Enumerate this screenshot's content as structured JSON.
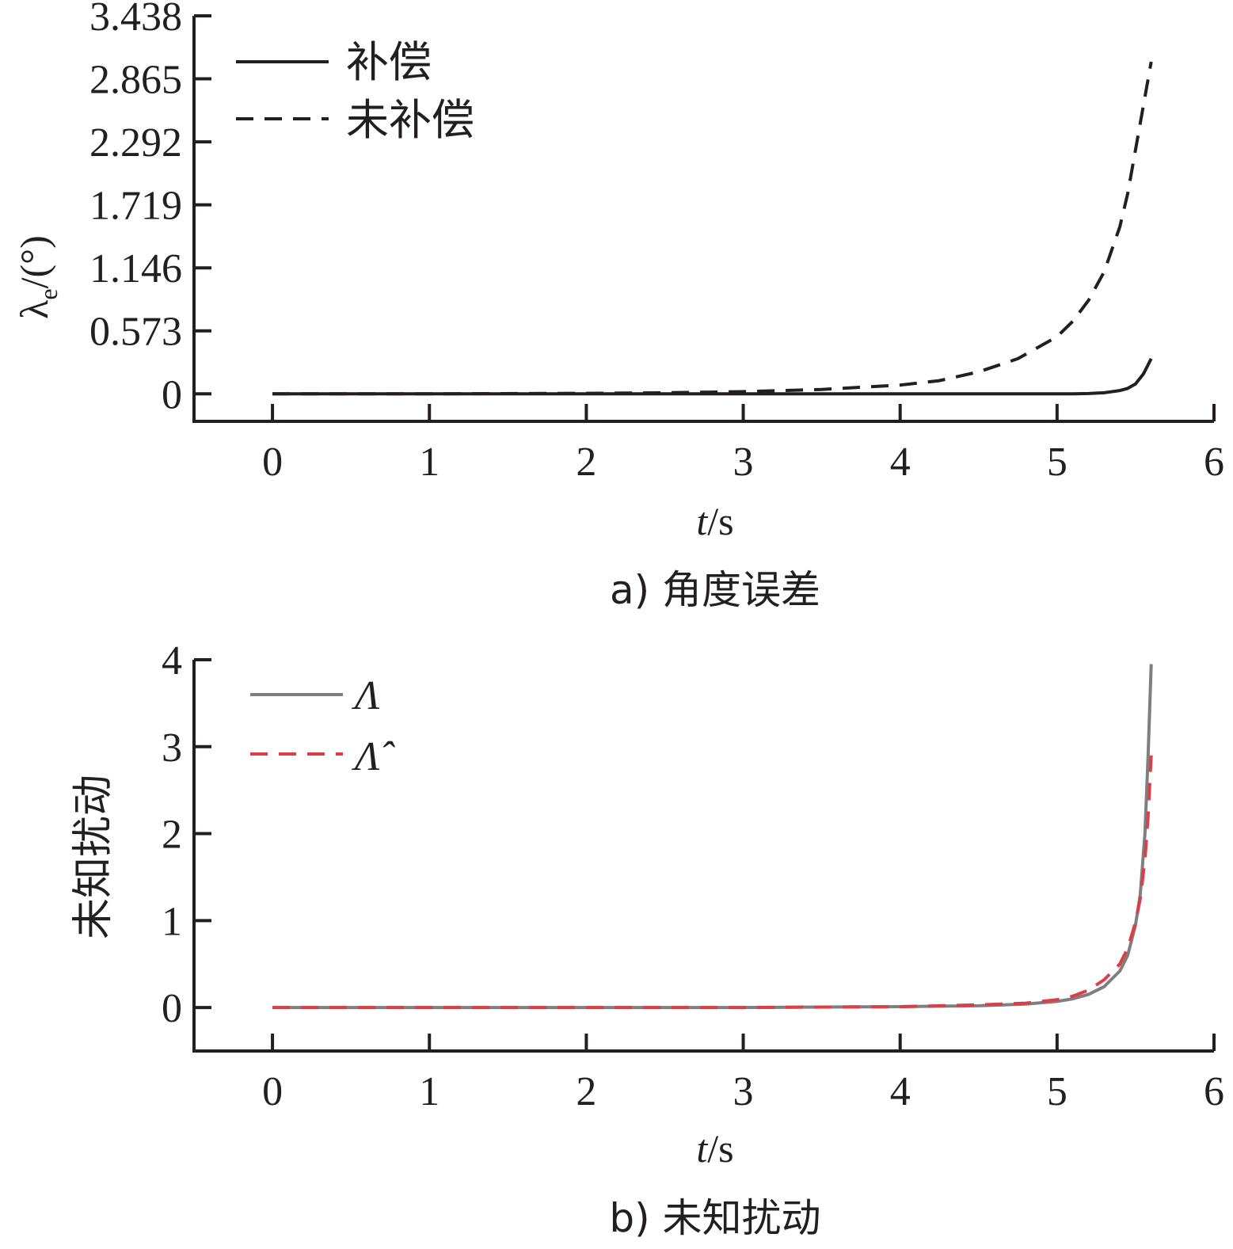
{
  "chart_data": [
    {
      "type": "line",
      "caption": "a) 角度误差",
      "xlabel_var": "t",
      "xlabel_unit": "/s",
      "ylabel_main": "λ",
      "ylabel_sub": "e",
      "ylabel_unit": "/(°)",
      "xlim": [
        -0.5,
        6
      ],
      "ylim": [
        -0.25,
        3.438
      ],
      "xticks": [
        "0",
        "1",
        "2",
        "3",
        "4",
        "5",
        "6"
      ],
      "xtick_values": [
        0,
        1,
        2,
        3,
        4,
        5,
        6
      ],
      "yticks": [
        "0",
        "0.573",
        "1.146",
        "1.719",
        "2.292",
        "2.865",
        "3.438"
      ],
      "ytick_values": [
        0,
        0.573,
        1.146,
        1.719,
        2.292,
        2.865,
        3.438
      ],
      "legend_position": "top-left",
      "series": [
        {
          "name": "补偿",
          "style": "solid",
          "color": "#231f20",
          "x": [
            0,
            1,
            2,
            3,
            4,
            5,
            5.1,
            5.2,
            5.3,
            5.4,
            5.45,
            5.5,
            5.55,
            5.6
          ],
          "y": [
            0,
            0,
            0,
            0,
            0,
            0,
            0,
            0.003,
            0.01,
            0.03,
            0.05,
            0.09,
            0.18,
            0.32
          ]
        },
        {
          "name": "未补偿",
          "style": "dashed",
          "color": "#231f20",
          "x": [
            0,
            1,
            2,
            2.5,
            3,
            3.5,
            4,
            4.25,
            4.5,
            4.75,
            5,
            5.1,
            5.2,
            5.3,
            5.4,
            5.45,
            5.5,
            5.55,
            5.6
          ],
          "y": [
            0,
            0,
            0.005,
            0.01,
            0.02,
            0.04,
            0.08,
            0.12,
            0.2,
            0.32,
            0.52,
            0.66,
            0.85,
            1.11,
            1.52,
            1.82,
            2.22,
            2.62,
            3.02
          ]
        }
      ]
    },
    {
      "type": "line",
      "caption": "b) 未知扰动",
      "xlabel_var": "t",
      "xlabel_unit": "/s",
      "ylabel": "未知扰动",
      "xlim": [
        -0.5,
        6
      ],
      "ylim": [
        -0.5,
        4
      ],
      "xticks": [
        "0",
        "1",
        "2",
        "3",
        "4",
        "5",
        "6"
      ],
      "xtick_values": [
        0,
        1,
        2,
        3,
        4,
        5,
        6
      ],
      "yticks": [
        "0",
        "1",
        "2",
        "3",
        "4"
      ],
      "ytick_values": [
        0,
        1,
        2,
        3,
        4
      ],
      "legend_position": "top-left",
      "series": [
        {
          "name": "Λ",
          "style": "solid",
          "color": "#7f7f7f",
          "x": [
            0,
            1,
            2,
            3,
            4,
            4.5,
            4.8,
            5,
            5.1,
            5.2,
            5.3,
            5.4,
            5.45,
            5.5,
            5.53,
            5.56,
            5.58,
            5.6
          ],
          "y": [
            0,
            0,
            0,
            0,
            0.01,
            0.02,
            0.04,
            0.07,
            0.1,
            0.15,
            0.24,
            0.42,
            0.6,
            0.95,
            1.3,
            2.0,
            2.9,
            3.95
          ]
        },
        {
          "name": "Λ̂",
          "style": "dashed",
          "color": "#d9404a",
          "x": [
            0,
            1,
            2,
            3,
            4,
            4.5,
            4.8,
            5,
            5.1,
            5.2,
            5.3,
            5.4,
            5.45,
            5.5,
            5.53,
            5.56,
            5.58,
            5.6
          ],
          "y": [
            0,
            0,
            0,
            0,
            0.01,
            0.03,
            0.05,
            0.09,
            0.13,
            0.2,
            0.32,
            0.5,
            0.68,
            0.98,
            1.25,
            1.7,
            2.2,
            2.9
          ]
        }
      ]
    }
  ]
}
